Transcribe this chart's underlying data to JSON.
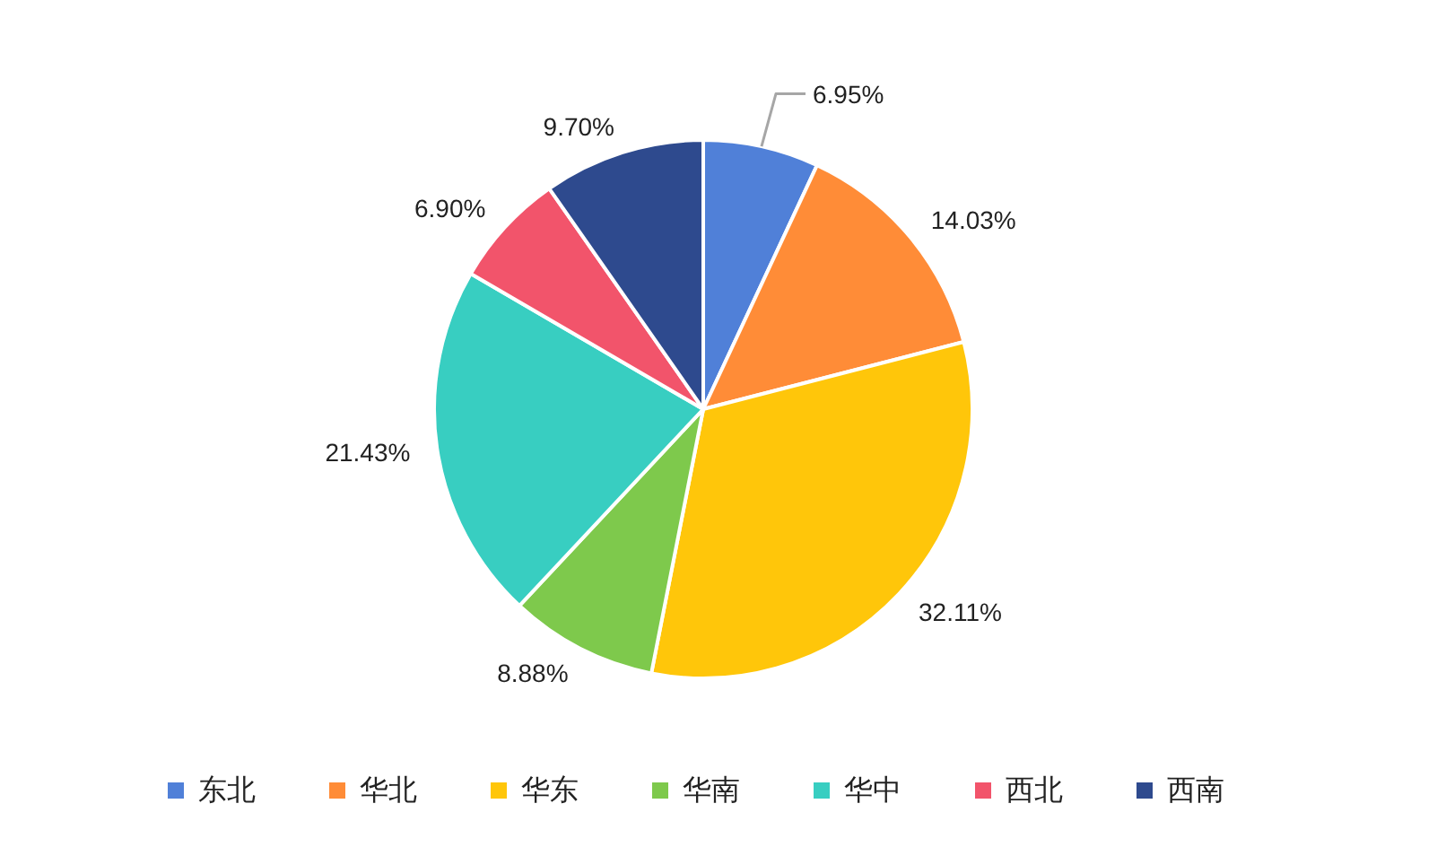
{
  "chart_data": {
    "type": "pie",
    "categories": [
      "东北",
      "华北",
      "华东",
      "华南",
      "华中",
      "西北",
      "西南"
    ],
    "values": [
      6.95,
      14.03,
      32.11,
      8.88,
      21.43,
      6.9,
      9.7
    ],
    "colors": [
      "#5080d8",
      "#ff8c37",
      "#ffc60a",
      "#7ec94c",
      "#38cec1",
      "#f2546b",
      "#2e4a8e"
    ],
    "value_labels": [
      "6.95%",
      "14.03%",
      "32.11%",
      "8.88%",
      "21.43%",
      "6.90%",
      "9.70%"
    ],
    "legend": "bottom"
  }
}
